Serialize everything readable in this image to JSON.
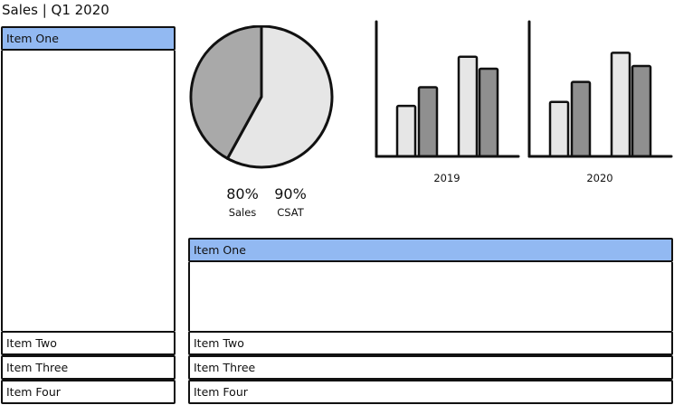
{
  "page": {
    "title": "Sales | Q1 2020"
  },
  "left_accordion": {
    "items": [
      {
        "label": "Item One",
        "active": true
      },
      {
        "label": "Item Two",
        "active": false
      },
      {
        "label": "Item Three",
        "active": false
      },
      {
        "label": "Item Four",
        "active": false
      }
    ]
  },
  "bottom_accordion": {
    "items": [
      {
        "label": "Item One",
        "active": true
      },
      {
        "label": "Item Two",
        "active": false
      },
      {
        "label": "Item Three",
        "active": false
      },
      {
        "label": "Item Four",
        "active": false
      }
    ]
  },
  "metrics": [
    {
      "value": "80%",
      "label": "Sales"
    },
    {
      "value": "90%",
      "label": "CSAT"
    }
  ],
  "colors": {
    "accent": "#92b9f2",
    "outline": "#111111",
    "light_fill": "#e6e6e6",
    "dark_fill": "#8f8f8f",
    "pie_dark": "#a9a9a9"
  },
  "chart_data": [
    {
      "type": "pie",
      "values": [
        58,
        42
      ]
    },
    {
      "type": "bar",
      "xlabel": "2019",
      "series": [
        {
          "values": [
            38,
            52,
            75,
            66
          ]
        }
      ],
      "ylim": [
        0,
        100
      ],
      "grid": false
    },
    {
      "type": "bar",
      "xlabel": "2020",
      "series": [
        {
          "values": [
            41,
            56,
            78,
            68
          ]
        }
      ],
      "ylim": [
        0,
        100
      ],
      "grid": false
    }
  ]
}
